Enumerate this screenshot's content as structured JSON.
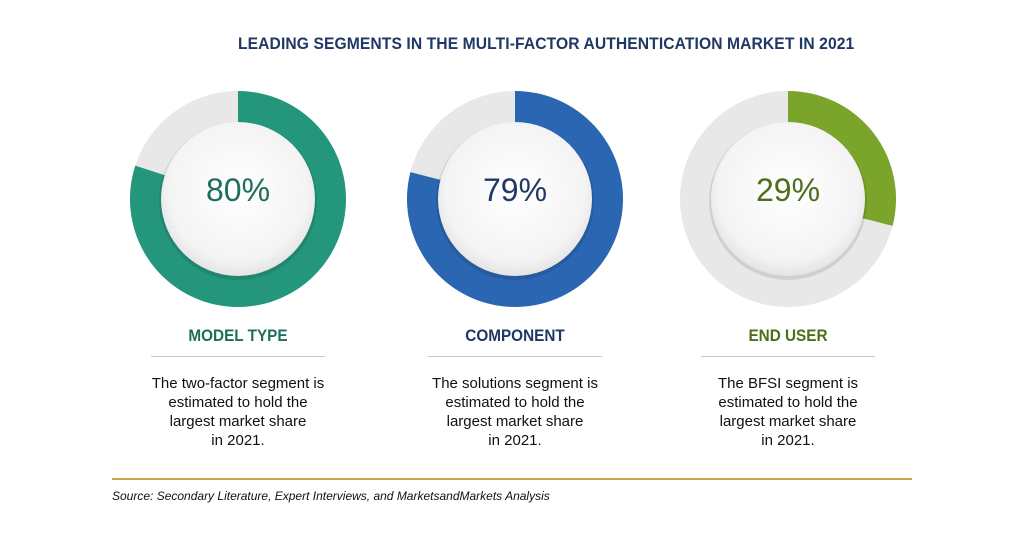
{
  "title": "LEADING SEGMENTS IN THE MULTI-FACTOR AUTHENTICATION MARKET IN 2021",
  "source": "Source: Secondary Literature, Expert Interviews, and MarketsandMarkets Analysis",
  "chart_data": [
    {
      "type": "pie",
      "value": 80,
      "value_label": "80%",
      "category": "MODEL TYPE",
      "description": [
        "The two-factor segment is",
        "estimated to hold the",
        "largest market share",
        "in 2021."
      ],
      "color": "#24967c"
    },
    {
      "type": "pie",
      "value": 79,
      "value_label": "79%",
      "category": "COMPONENT",
      "description": [
        "The solutions segment is",
        "estimated to hold the",
        "largest market share",
        "in 2021."
      ],
      "color": "#2b66b2"
    },
    {
      "type": "pie",
      "value": 29,
      "value_label": "29%",
      "category": "END USER",
      "description": [
        "The BFSI segment is",
        "estimated to hold the",
        "largest market share",
        "in 2021."
      ],
      "color": "#7aa52a"
    }
  ],
  "colors": {
    "track": "#e8e8e8",
    "title": "#1f3864",
    "label_1": "#1d6e5c",
    "label_2": "#1f3864",
    "label_3": "#4e6e1d",
    "rule": "#c9a64a"
  }
}
